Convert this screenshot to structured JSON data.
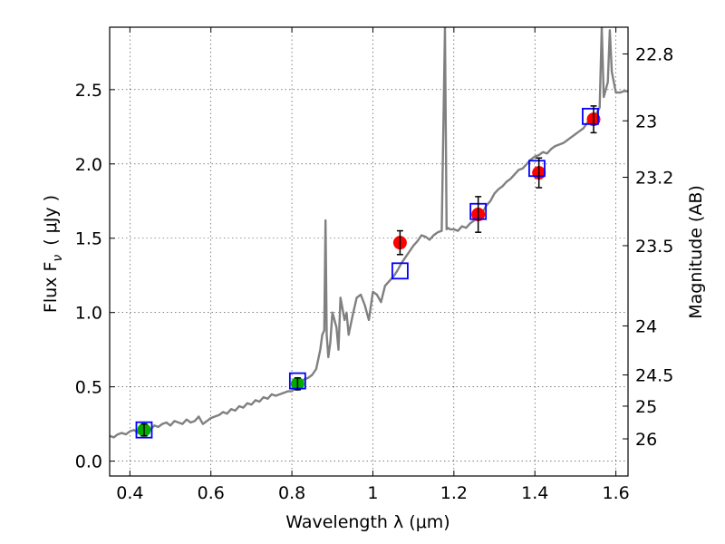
{
  "chart_data": {
    "type": "scatter",
    "xlabel": "Wavelength  λ (μm)",
    "ylabel": "Flux  F",
    "ylabel_sub": "ν",
    "ylabel_unit": "( μJy )",
    "ylabel_right": "Magnitude (AB)",
    "xlim": [
      0.35,
      1.63
    ],
    "ylim": [
      -0.1,
      2.92
    ],
    "x_ticks": [
      {
        "value": 0.4,
        "label": "0.4"
      },
      {
        "value": 0.6,
        "label": "0.6"
      },
      {
        "value": 0.8,
        "label": "0.8"
      },
      {
        "value": 1.0,
        "label": "1"
      },
      {
        "value": 1.2,
        "label": "1.2"
      },
      {
        "value": 1.4,
        "label": "1.4"
      },
      {
        "value": 1.6,
        "label": "1.6"
      }
    ],
    "y_ticks": [
      {
        "value": 0.0,
        "label": "0.0"
      },
      {
        "value": 0.5,
        "label": "0.5"
      },
      {
        "value": 1.0,
        "label": "1.0"
      },
      {
        "value": 1.5,
        "label": "1.5"
      },
      {
        "value": 2.0,
        "label": "2.0"
      },
      {
        "value": 2.5,
        "label": "2.5"
      }
    ],
    "right_ticks": [
      {
        "flux": 2.74,
        "label": "22.8"
      },
      {
        "flux": 2.29,
        "label": "23"
      },
      {
        "flux": 1.91,
        "label": "23.2"
      },
      {
        "flux": 1.45,
        "label": "23.5"
      },
      {
        "flux": 0.91,
        "label": "24"
      },
      {
        "flux": 0.58,
        "label": "24.5"
      },
      {
        "flux": 0.37,
        "label": "25"
      },
      {
        "flux": 0.15,
        "label": "26"
      }
    ],
    "grid": true,
    "colors": {
      "model": "#808080",
      "observed_optical": "#00aa00",
      "observed_nir": "#ff0000",
      "model_photometry": "#0000ff",
      "error_bar": "#000000"
    },
    "series": [
      {
        "type": "line",
        "x": [
          0.35,
          0.36,
          0.37,
          0.38,
          0.39,
          0.4,
          0.41,
          0.42,
          0.43,
          0.44,
          0.45,
          0.46,
          0.47,
          0.48,
          0.49,
          0.5,
          0.51,
          0.52,
          0.53,
          0.54,
          0.55,
          0.56,
          0.57,
          0.58,
          0.59,
          0.6,
          0.61,
          0.62,
          0.63,
          0.64,
          0.65,
          0.66,
          0.67,
          0.68,
          0.69,
          0.7,
          0.71,
          0.72,
          0.73,
          0.74,
          0.75,
          0.76,
          0.77,
          0.78,
          0.79,
          0.8,
          0.81,
          0.82,
          0.83,
          0.84,
          0.85,
          0.86,
          0.87,
          0.875,
          0.88,
          0.883,
          0.886,
          0.89,
          0.895,
          0.9,
          0.91,
          0.915,
          0.92,
          0.93,
          0.935,
          0.94,
          0.95,
          0.96,
          0.97,
          0.98,
          0.99,
          1.0,
          1.01,
          1.02,
          1.03,
          1.04,
          1.05,
          1.06,
          1.07,
          1.08,
          1.09,
          1.1,
          1.11,
          1.12,
          1.13,
          1.14,
          1.15,
          1.16,
          1.17,
          1.178,
          1.182,
          1.185,
          1.19,
          1.2,
          1.21,
          1.22,
          1.23,
          1.24,
          1.25,
          1.26,
          1.27,
          1.28,
          1.29,
          1.3,
          1.31,
          1.32,
          1.33,
          1.34,
          1.35,
          1.36,
          1.37,
          1.38,
          1.39,
          1.4,
          1.41,
          1.42,
          1.43,
          1.44,
          1.45,
          1.46,
          1.47,
          1.48,
          1.49,
          1.5,
          1.51,
          1.52,
          1.53,
          1.54,
          1.55,
          1.56,
          1.565,
          1.57,
          1.58,
          1.585,
          1.59,
          1.6,
          1.61,
          1.62,
          1.63
        ],
        "y": [
          0.17,
          0.16,
          0.18,
          0.19,
          0.18,
          0.2,
          0.21,
          0.19,
          0.22,
          0.23,
          0.21,
          0.24,
          0.23,
          0.25,
          0.26,
          0.24,
          0.27,
          0.26,
          0.25,
          0.28,
          0.26,
          0.27,
          0.3,
          0.25,
          0.27,
          0.29,
          0.3,
          0.31,
          0.33,
          0.32,
          0.35,
          0.34,
          0.37,
          0.36,
          0.39,
          0.38,
          0.41,
          0.4,
          0.43,
          0.42,
          0.45,
          0.44,
          0.45,
          0.46,
          0.47,
          0.47,
          0.5,
          0.52,
          0.55,
          0.56,
          0.58,
          0.62,
          0.75,
          0.85,
          0.88,
          1.62,
          0.85,
          0.7,
          0.8,
          1.0,
          0.9,
          0.75,
          1.1,
          0.95,
          1.0,
          0.85,
          0.98,
          1.1,
          1.12,
          1.05,
          0.95,
          1.14,
          1.12,
          1.07,
          1.18,
          1.21,
          1.24,
          1.28,
          1.33,
          1.37,
          1.41,
          1.45,
          1.48,
          1.52,
          1.51,
          1.49,
          1.52,
          1.54,
          1.55,
          2.92,
          1.56,
          1.57,
          1.56,
          1.56,
          1.55,
          1.58,
          1.57,
          1.6,
          1.62,
          1.64,
          1.67,
          1.72,
          1.75,
          1.8,
          1.83,
          1.85,
          1.88,
          1.9,
          1.93,
          1.96,
          1.97,
          2.0,
          2.03,
          2.05,
          2.06,
          2.08,
          2.07,
          2.1,
          2.12,
          2.13,
          2.14,
          2.16,
          2.18,
          2.2,
          2.22,
          2.24,
          2.28,
          2.3,
          2.33,
          2.38,
          2.92,
          2.45,
          2.55,
          2.9,
          2.62,
          2.48,
          2.48,
          2.49,
          2.49
        ]
      },
      {
        "name": "",
        "type": "scatter",
        "marker": "circle",
        "points": [
          {
            "x": 0.435,
            "y": 0.21,
            "err": 0.04
          },
          {
            "x": 0.814,
            "y": 0.52,
            "err": 0.04
          }
        ]
      },
      {
        "name": "",
        "type": "scatter",
        "marker": "circle",
        "points": [
          {
            "x": 1.067,
            "y": 1.47,
            "err": 0.08
          },
          {
            "x": 1.26,
            "y": 1.66,
            "err": 0.12
          },
          {
            "x": 1.41,
            "y": 1.94,
            "err": 0.1
          },
          {
            "x": 1.545,
            "y": 2.3,
            "err": 0.09
          }
        ]
      },
      {
        "name": "",
        "type": "scatter",
        "marker": "open-square",
        "points": [
          {
            "x": 0.435,
            "y": 0.21
          },
          {
            "x": 0.814,
            "y": 0.54
          },
          {
            "x": 1.067,
            "y": 1.28
          },
          {
            "x": 1.26,
            "y": 1.68
          },
          {
            "x": 1.405,
            "y": 1.97
          },
          {
            "x": 1.537,
            "y": 2.32
          }
        ]
      }
    ]
  }
}
